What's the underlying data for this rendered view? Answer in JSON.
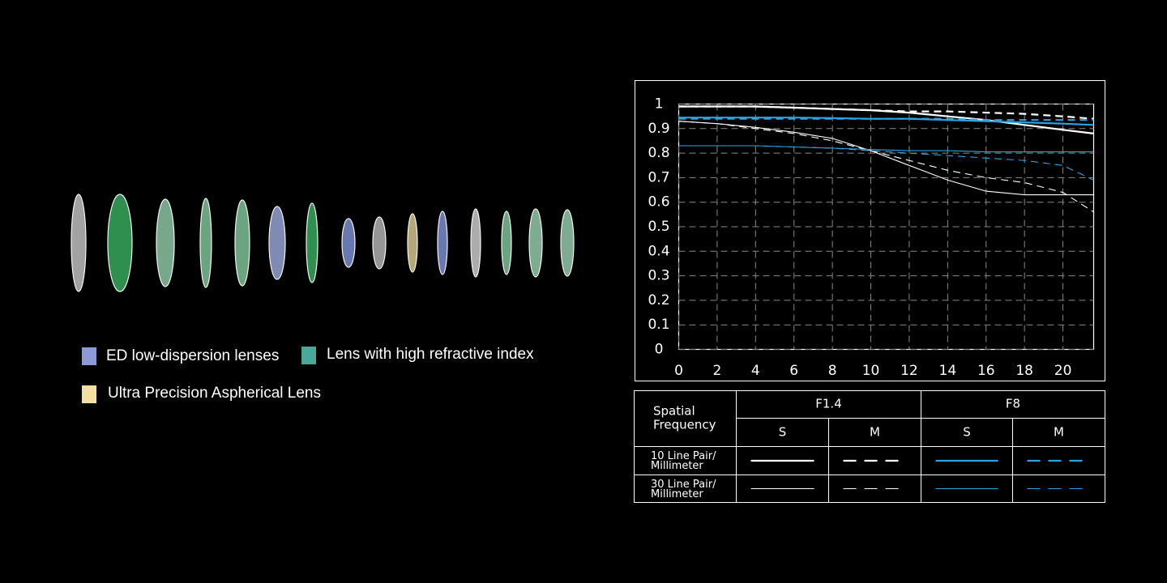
{
  "lens_legend": [
    {
      "label": "ED low-dispersion lenses",
      "color": "#8c9ad6"
    },
    {
      "label": "Lens with high refractive index",
      "color": "#4aa89a"
    },
    {
      "label": "Ultra Precision Aspherical Lens",
      "color": "#f3dfa2"
    }
  ],
  "chart_data": {
    "type": "line",
    "x": [
      0,
      2,
      4,
      6,
      8,
      10,
      12,
      14,
      16,
      18,
      20,
      21.6
    ],
    "xlim": [
      0,
      21.6
    ],
    "xticks": [
      0,
      2,
      4,
      6,
      8,
      10,
      12,
      14,
      16,
      18,
      20
    ],
    "ylim": [
      0,
      1
    ],
    "yticks": [
      0,
      0.1,
      0.2,
      0.3,
      0.4,
      0.5,
      0.6,
      0.7,
      0.8,
      0.9,
      1
    ],
    "grid": true,
    "series": [
      {
        "color": "#ffffff",
        "dashed": false,
        "line_width": 2.2,
        "values": [
          0.99,
          0.99,
          0.99,
          0.985,
          0.98,
          0.975,
          0.965,
          0.95,
          0.935,
          0.915,
          0.895,
          0.88
        ]
      },
      {
        "color": "#ffffff",
        "dashed": true,
        "line_width": 2.2,
        "values": [
          0.99,
          0.99,
          0.99,
          0.985,
          0.98,
          0.975,
          0.97,
          0.97,
          0.965,
          0.96,
          0.95,
          0.94
        ]
      },
      {
        "color": "#2fa3e0",
        "dashed": false,
        "line_width": 2.2,
        "values": [
          0.945,
          0.945,
          0.945,
          0.945,
          0.943,
          0.94,
          0.94,
          0.935,
          0.93,
          0.925,
          0.92,
          0.915
        ]
      },
      {
        "color": "#2fa3e0",
        "dashed": true,
        "line_width": 2.2,
        "values": [
          0.94,
          0.94,
          0.94,
          0.94,
          0.94,
          0.94,
          0.94,
          0.94,
          0.935,
          0.935,
          0.935,
          0.935
        ]
      },
      {
        "color": "#ffffff",
        "dashed": false,
        "line_width": 1.1,
        "values": [
          0.93,
          0.92,
          0.905,
          0.885,
          0.86,
          0.81,
          0.75,
          0.69,
          0.645,
          0.63,
          0.63,
          0.63
        ]
      },
      {
        "color": "#ffffff",
        "dashed": true,
        "line_width": 1.1,
        "values": [
          0.93,
          0.92,
          0.9,
          0.88,
          0.85,
          0.81,
          0.77,
          0.73,
          0.7,
          0.68,
          0.64,
          0.56
        ]
      },
      {
        "color": "#2fa3e0",
        "dashed": false,
        "line_width": 1.1,
        "values": [
          0.83,
          0.83,
          0.83,
          0.825,
          0.82,
          0.815,
          0.81,
          0.81,
          0.805,
          0.805,
          0.805,
          0.805
        ]
      },
      {
        "color": "#2fa3e0",
        "dashed": true,
        "line_width": 1.1,
        "values": [
          0.83,
          0.83,
          0.83,
          0.825,
          0.82,
          0.81,
          0.8,
          0.79,
          0.78,
          0.77,
          0.75,
          0.69
        ]
      }
    ]
  },
  "mtf_table": {
    "corner": [
      "Spatial",
      "Frequency"
    ],
    "apertures": [
      "F1.4",
      "F8"
    ],
    "directions": [
      "S",
      "M",
      "S",
      "M"
    ],
    "rows": [
      [
        "10 Line Pair/",
        "Millimeter"
      ],
      [
        "30 Line Pair/",
        "Millimeter"
      ]
    ]
  }
}
